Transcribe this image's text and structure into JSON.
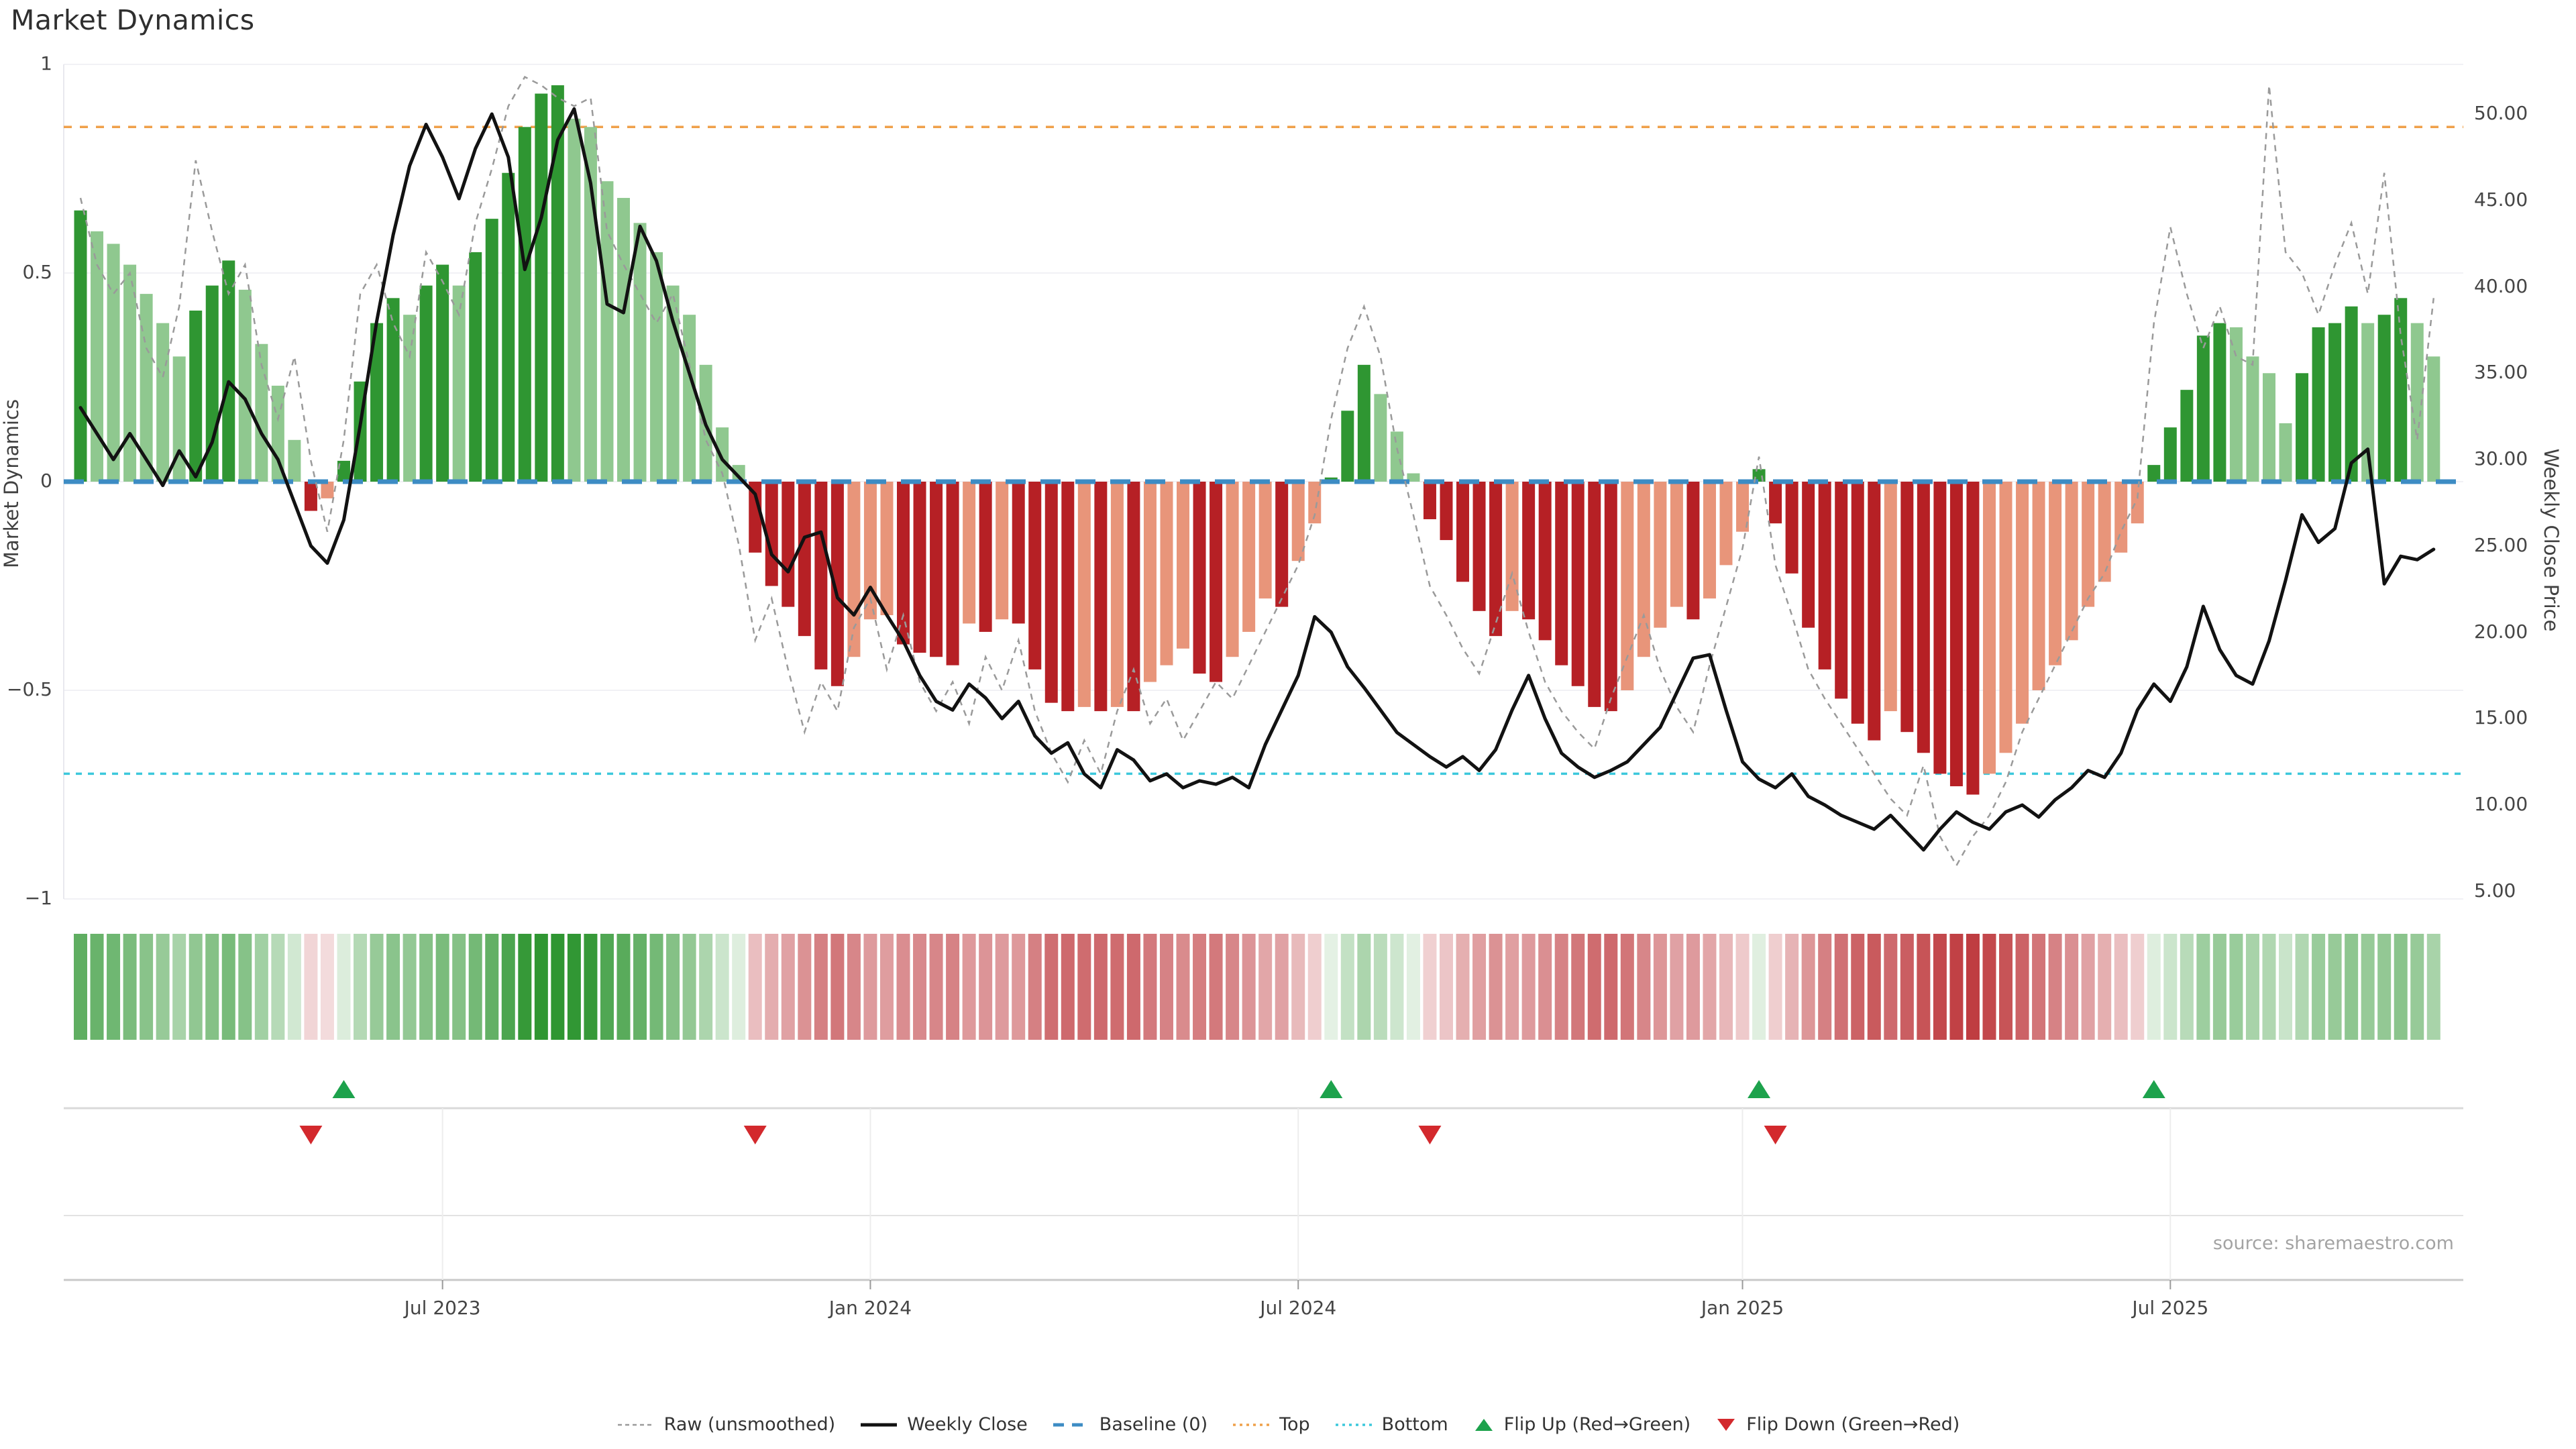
{
  "title": "Market Dynamics",
  "source": "source: sharemaestro.com",
  "y_axis_left": {
    "label": "Market Dynamics",
    "ticks": [
      {
        "label": "1",
        "value": 1
      },
      {
        "label": "0.5",
        "value": 0.5
      },
      {
        "label": "0",
        "value": 0
      },
      {
        "label": "−0.5",
        "value": -0.5
      },
      {
        "label": "−1",
        "value": -1
      }
    ]
  },
  "y_axis_right": {
    "label": "Weekly Close Price",
    "ticks": [
      {
        "label": "50.00",
        "value": 50
      },
      {
        "label": "45.00",
        "value": 45
      },
      {
        "label": "40.00",
        "value": 40
      },
      {
        "label": "35.00",
        "value": 35
      },
      {
        "label": "30.00",
        "value": 30
      },
      {
        "label": "25.00",
        "value": 25
      },
      {
        "label": "20.00",
        "value": 20
      },
      {
        "label": "15.00",
        "value": 15
      },
      {
        "label": "10.00",
        "value": 10
      },
      {
        "label": "5.00",
        "value": 5
      }
    ]
  },
  "x_axis": {
    "ticks": [
      {
        "label": "Jul 2023",
        "week_index": 22
      },
      {
        "label": "Jan 2024",
        "week_index": 48
      },
      {
        "label": "Jul 2024",
        "week_index": 74
      },
      {
        "label": "Jan 2025",
        "week_index": 101
      },
      {
        "label": "Jul 2025",
        "week_index": 127
      }
    ]
  },
  "reference_lines": {
    "baseline": {
      "label": "Baseline (0)",
      "value": 0,
      "color": "#3d8cc4"
    },
    "top": {
      "label": "Top",
      "value": 0.85,
      "color": "#efa04a"
    },
    "bottom": {
      "label": "Bottom",
      "value": -0.7,
      "color": "#3cc8dc"
    }
  },
  "legend": {
    "items": [
      {
        "label": "Raw (unsmoothed)",
        "swatch": "dash-gray",
        "color": "#9a9a9a"
      },
      {
        "label": "Weekly Close",
        "swatch": "solid-black",
        "color": "#121212"
      },
      {
        "label": "Baseline (0)",
        "swatch": "dash-blue",
        "color": "#3d8cc4"
      },
      {
        "label": "Top",
        "swatch": "dot-orange",
        "color": "#efa04a"
      },
      {
        "label": "Bottom",
        "swatch": "dot-teal",
        "color": "#3cc8dc"
      },
      {
        "label": "Flip Up (Red→Green)",
        "swatch": "tri-up",
        "color": "#1da24c"
      },
      {
        "label": "Flip Down (Green→Red)",
        "swatch": "tri-down",
        "color": "#d3292d"
      }
    ]
  },
  "colors": {
    "bar_green_strong": "#2f9632",
    "bar_green_weak": "#8fc88f",
    "bar_red_strong": "#b62025",
    "bar_red_weak": "#e8957a",
    "weekly_close_line": "#121212",
    "raw_line": "#9a9a9a",
    "flip_up_marker": "#1da24c",
    "flip_down_marker": "#d3292d",
    "gridline": "#f1f1f5",
    "panel_line": "#d9d9d9",
    "axis_line": "#c9c9c9"
  },
  "chart_data": {
    "type": "combo (bar oscillator + line overlay + heatmap strip + event markers)",
    "title": "Market Dynamics",
    "xlabel": "",
    "ylabel_left": "Market Dynamics",
    "ylabel_right": "Weekly Close Price",
    "ylim_left": [
      -1,
      1
    ],
    "ylim_right": [
      5,
      50
    ],
    "weeks": 144,
    "grid": "horizontal only in main panel; horizontal + vertical in marker panel",
    "legend_position": "bottom center",
    "oscillator_values": [
      0.65,
      0.6,
      0.57,
      0.52,
      0.45,
      0.38,
      0.3,
      0.41,
      0.47,
      0.53,
      0.46,
      0.33,
      0.23,
      0.1,
      -0.07,
      -0.04,
      0.05,
      0.24,
      0.38,
      0.44,
      0.4,
      0.47,
      0.52,
      0.47,
      0.55,
      0.63,
      0.74,
      0.85,
      0.93,
      0.95,
      0.87,
      0.85,
      0.72,
      0.68,
      0.62,
      0.55,
      0.47,
      0.4,
      0.28,
      0.13,
      0.04,
      -0.17,
      -0.25,
      -0.3,
      -0.37,
      -0.45,
      -0.49,
      -0.42,
      -0.33,
      -0.32,
      -0.39,
      -0.41,
      -0.42,
      -0.44,
      -0.34,
      -0.36,
      -0.33,
      -0.34,
      -0.45,
      -0.53,
      -0.55,
      -0.54,
      -0.55,
      -0.54,
      -0.55,
      -0.48,
      -0.44,
      -0.4,
      -0.46,
      -0.48,
      -0.42,
      -0.36,
      -0.28,
      -0.3,
      -0.19,
      -0.1,
      0.01,
      0.17,
      0.28,
      0.21,
      0.12,
      0.02,
      -0.09,
      -0.14,
      -0.24,
      -0.31,
      -0.37,
      -0.31,
      -0.33,
      -0.38,
      -0.44,
      -0.49,
      -0.54,
      -0.55,
      -0.5,
      -0.42,
      -0.35,
      -0.3,
      -0.33,
      -0.28,
      -0.2,
      -0.12,
      0.03,
      -0.1,
      -0.22,
      -0.35,
      -0.45,
      -0.52,
      -0.58,
      -0.62,
      -0.55,
      -0.6,
      -0.65,
      -0.7,
      -0.73,
      -0.75,
      -0.7,
      -0.65,
      -0.58,
      -0.5,
      -0.44,
      -0.38,
      -0.3,
      -0.24,
      -0.17,
      -0.1,
      0.04,
      0.13,
      0.22,
      0.35,
      0.38,
      0.37,
      0.3,
      0.26,
      0.14,
      0.26,
      0.37,
      0.38,
      0.42,
      0.38,
      0.4,
      0.44,
      0.38,
      0.3
    ],
    "weekly_close": [
      33.0,
      31.5,
      30.0,
      31.5,
      30.0,
      28.5,
      30.5,
      29.0,
      31.0,
      34.5,
      33.5,
      31.5,
      30.0,
      27.5,
      25.0,
      24.0,
      26.5,
      32.0,
      38.0,
      43.0,
      47.0,
      49.4,
      47.5,
      45.1,
      48.0,
      50.0,
      47.5,
      41.0,
      44.0,
      48.5,
      50.3,
      46.0,
      39.0,
      38.5,
      43.5,
      41.5,
      38.0,
      35.0,
      32.0,
      30.0,
      29.0,
      28.0,
      24.5,
      23.5,
      25.5,
      25.8,
      22.0,
      21.0,
      22.6,
      21.0,
      19.5,
      17.5,
      16.0,
      15.5,
      17.0,
      16.2,
      15.0,
      16.0,
      14.0,
      13.0,
      13.6,
      11.8,
      11.0,
      13.2,
      12.6,
      11.4,
      11.8,
      11.0,
      11.4,
      11.2,
      11.6,
      11.0,
      13.5,
      15.5,
      17.5,
      20.9,
      20.0,
      18.0,
      16.8,
      15.5,
      14.2,
      13.5,
      12.8,
      12.2,
      12.8,
      12.0,
      13.2,
      15.5,
      17.5,
      15.0,
      13.0,
      12.2,
      11.6,
      12.0,
      12.5,
      13.5,
      14.5,
      16.5,
      18.5,
      18.7,
      15.5,
      12.5,
      11.5,
      11.0,
      11.8,
      10.5,
      10.0,
      9.4,
      9.0,
      8.6,
      9.4,
      8.4,
      7.4,
      8.6,
      9.6,
      9.0,
      8.6,
      9.6,
      10.0,
      9.3,
      10.3,
      11.0,
      12.0,
      11.6,
      13.0,
      15.5,
      17.0,
      16.0,
      18.0,
      21.5,
      19.0,
      17.5,
      17.0,
      19.5,
      23.0,
      26.8,
      25.2,
      26.0,
      29.8,
      30.6,
      22.8,
      24.4,
      24.2,
      24.8
    ],
    "raw_unsmoothed": [
      0.68,
      0.52,
      0.45,
      0.5,
      0.32,
      0.25,
      0.42,
      0.77,
      0.6,
      0.45,
      0.52,
      0.28,
      0.15,
      0.3,
      0.05,
      -0.12,
      0.1,
      0.45,
      0.52,
      0.38,
      0.3,
      0.55,
      0.48,
      0.4,
      0.62,
      0.75,
      0.9,
      0.97,
      0.95,
      0.92,
      0.9,
      0.92,
      0.6,
      0.52,
      0.45,
      0.38,
      0.45,
      0.28,
      0.1,
      0.02,
      -0.15,
      -0.38,
      -0.28,
      -0.45,
      -0.6,
      -0.48,
      -0.55,
      -0.35,
      -0.28,
      -0.45,
      -0.32,
      -0.48,
      -0.55,
      -0.48,
      -0.58,
      -0.42,
      -0.5,
      -0.38,
      -0.55,
      -0.65,
      -0.72,
      -0.62,
      -0.7,
      -0.55,
      -0.45,
      -0.58,
      -0.52,
      -0.62,
      -0.55,
      -0.48,
      -0.52,
      -0.44,
      -0.36,
      -0.28,
      -0.2,
      -0.08,
      0.15,
      0.32,
      0.42,
      0.3,
      0.08,
      -0.08,
      -0.25,
      -0.32,
      -0.4,
      -0.46,
      -0.34,
      -0.22,
      -0.36,
      -0.48,
      -0.55,
      -0.6,
      -0.64,
      -0.52,
      -0.42,
      -0.32,
      -0.45,
      -0.54,
      -0.6,
      -0.44,
      -0.3,
      -0.16,
      0.06,
      -0.2,
      -0.32,
      -0.45,
      -0.52,
      -0.58,
      -0.64,
      -0.7,
      -0.76,
      -0.8,
      -0.68,
      -0.85,
      -0.92,
      -0.85,
      -0.8,
      -0.72,
      -0.6,
      -0.52,
      -0.44,
      -0.36,
      -0.28,
      -0.22,
      -0.12,
      -0.04,
      0.38,
      0.61,
      0.45,
      0.32,
      0.42,
      0.3,
      0.28,
      0.95,
      0.55,
      0.5,
      0.4,
      0.52,
      0.62,
      0.45,
      0.74,
      0.35,
      0.1,
      0.44
    ],
    "flip_up_weeks": [
      16,
      76,
      102,
      126
    ],
    "flip_down_weeks": [
      14,
      41,
      82,
      103
    ],
    "heatmap": "color = sign of oscillator value (green positive / red negative), opacity proportional to |value|"
  }
}
